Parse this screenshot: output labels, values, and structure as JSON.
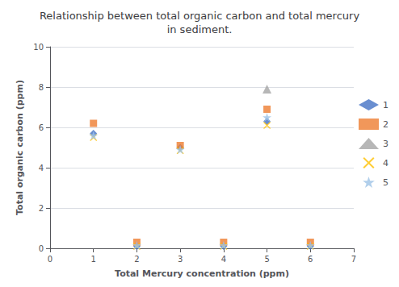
{
  "chart_data": {
    "type": "scatter",
    "title": "Relationship between total organic carbon and total mercury\nin sediment.",
    "xlabel": "Total Mercury concentration (ppm)",
    "ylabel": "Total organic carbon (ppm)",
    "xlim": [
      0,
      7
    ],
    "xticks": [
      0,
      1,
      2,
      3,
      4,
      5,
      6,
      7
    ],
    "ylim": [
      0,
      10
    ],
    "yticks": [
      0,
      2,
      4,
      6,
      8,
      10
    ],
    "grid": "y",
    "legend": "right",
    "series": [
      {
        "name": "1",
        "color": "#4472C4",
        "marker": "diamond",
        "x": [
          1,
          2,
          3,
          4,
          5,
          6
        ],
        "values": [
          5.7,
          0.1,
          5.0,
          0.1,
          6.3,
          0.1
        ]
      },
      {
        "name": "2",
        "color": "#ED7D31",
        "marker": "square",
        "x": [
          1,
          2,
          3,
          4,
          5,
          6
        ],
        "values": [
          6.2,
          0.3,
          5.1,
          0.3,
          6.9,
          0.3
        ]
      },
      {
        "name": "3",
        "color": "#A5A5A5",
        "marker": "triangle",
        "x": [
          5
        ],
        "values": [
          7.9
        ]
      },
      {
        "name": "4",
        "color": "#FFC000",
        "marker": "x",
        "x": [
          1,
          2,
          3,
          4,
          5,
          6
        ],
        "values": [
          5.5,
          0.1,
          4.85,
          0.1,
          6.1,
          0.1
        ]
      },
      {
        "name": "5",
        "color": "#9DC3E6",
        "marker": "star",
        "x": [
          1,
          2,
          3,
          4,
          5,
          6
        ],
        "values": [
          5.6,
          0.15,
          4.9,
          0.15,
          6.5,
          0.15
        ]
      }
    ]
  }
}
